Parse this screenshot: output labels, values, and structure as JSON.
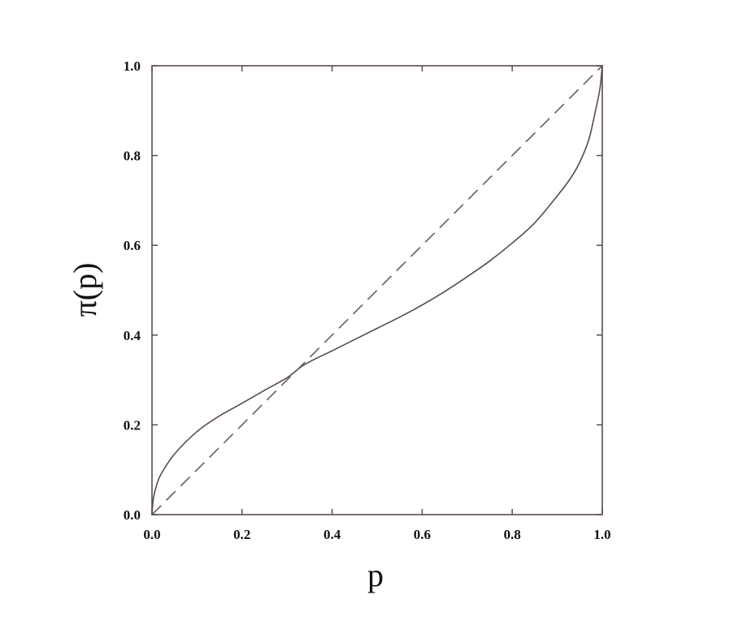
{
  "chart_data": {
    "type": "line",
    "title": "",
    "xlabel": "p",
    "ylabel": "π(p)",
    "xlim": [
      0,
      1
    ],
    "ylim": [
      0,
      1
    ],
    "grid": false,
    "xticks": [
      "0.0",
      "0.2",
      "0.4",
      "0.6",
      "0.8",
      "1.0"
    ],
    "yticks": [
      "0.0",
      "0.2",
      "0.4",
      "0.6",
      "0.8",
      "1.0"
    ],
    "series": [
      {
        "style": "solid",
        "color": "#5a4a52",
        "x": [
          0,
          0.003,
          0.01,
          0.02,
          0.05,
          0.1,
          0.15,
          0.2,
          0.25,
          0.3,
          0.34,
          0.4,
          0.45,
          0.5,
          0.55,
          0.6,
          0.65,
          0.7,
          0.75,
          0.8,
          0.85,
          0.9,
          0.93,
          0.95,
          0.97,
          0.985,
          0.995,
          1.0
        ],
        "y": [
          0,
          0.035,
          0.065,
          0.09,
          0.135,
          0.185,
          0.22,
          0.248,
          0.277,
          0.305,
          0.335,
          0.365,
          0.39,
          0.415,
          0.44,
          0.467,
          0.497,
          0.53,
          0.565,
          0.605,
          0.65,
          0.71,
          0.75,
          0.785,
          0.835,
          0.9,
          0.95,
          1.0
        ]
      },
      {
        "style": "dashed",
        "color": "#6a5a62",
        "x": [
          0,
          1
        ],
        "y": [
          0,
          1
        ]
      }
    ]
  }
}
